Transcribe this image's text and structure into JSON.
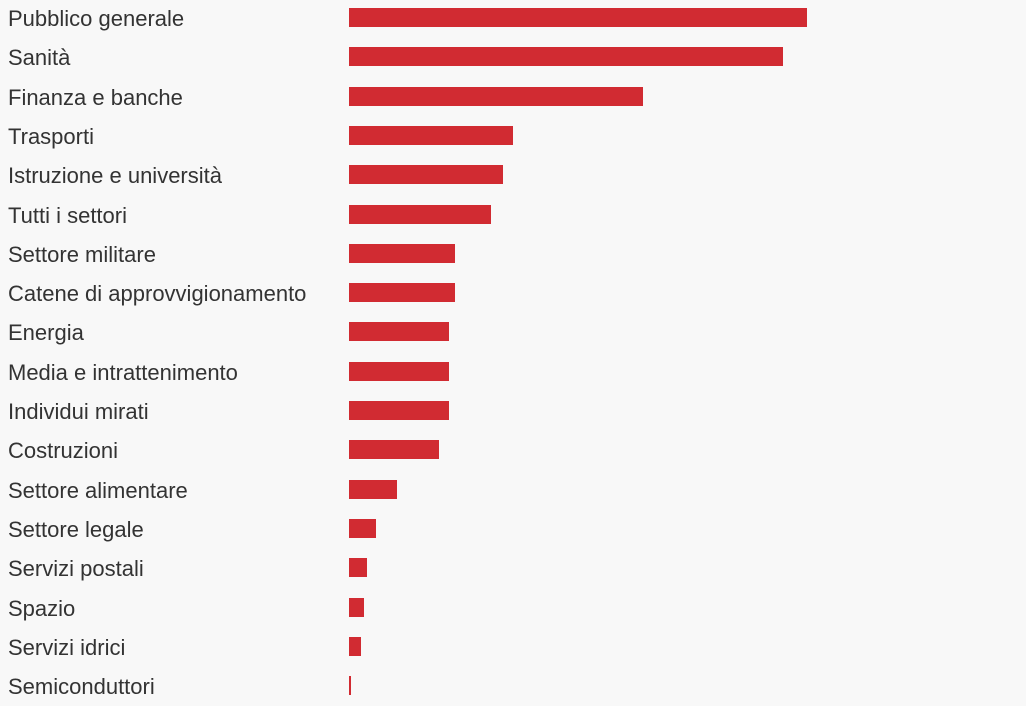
{
  "chart_data": {
    "type": "bar",
    "orientation": "horizontal",
    "title": "",
    "xlabel": "",
    "ylabel": "",
    "grid": false,
    "xlim": [
      0,
      458
    ],
    "bar_color": "#d12b32",
    "categories": [
      "Pubblico generale",
      "Sanità",
      "Finanza e banche",
      "Trasporti",
      "Istruzione e università",
      "Tutti i settori",
      "Settore militare",
      "Catene di approvvigionamento",
      "Energia",
      "Media e intrattenimento",
      "Individui mirati",
      "Costruzioni",
      "Settore alimentare",
      "Settore legale",
      "Servizi postali",
      "Spazio",
      "Servizi idrici",
      "Semiconduttori"
    ],
    "values": [
      458,
      434,
      294,
      164,
      154,
      142,
      106,
      106,
      100,
      100,
      100,
      90,
      48,
      27,
      18,
      15,
      12,
      2
    ]
  }
}
